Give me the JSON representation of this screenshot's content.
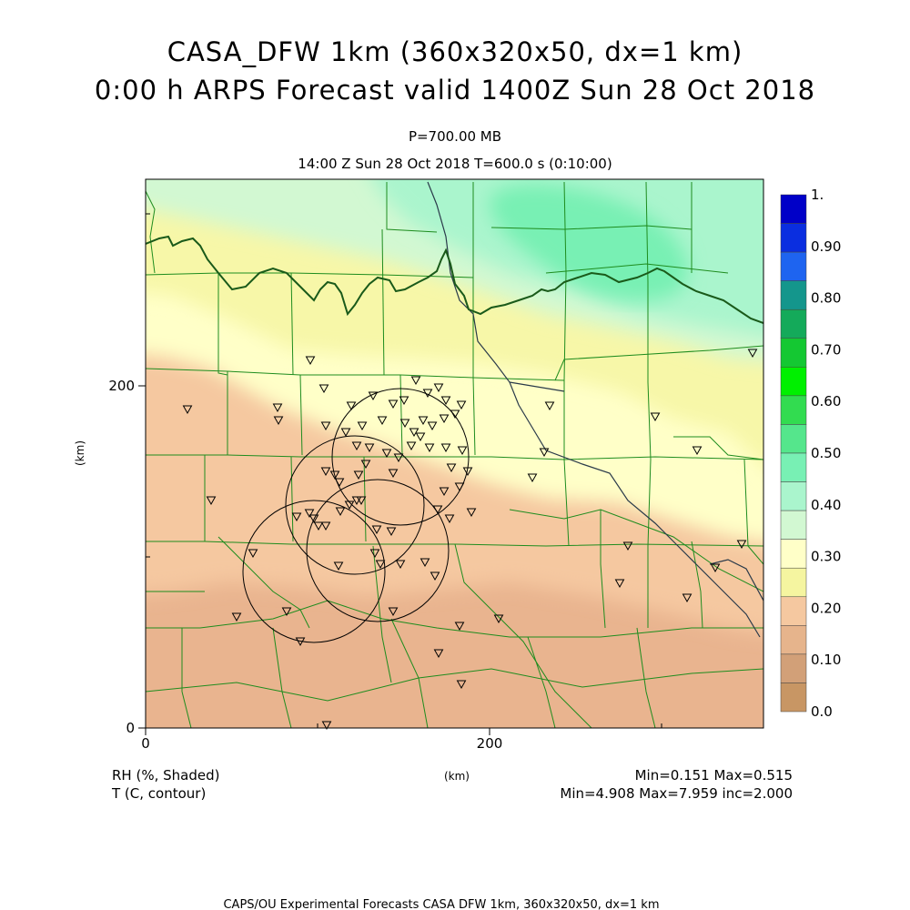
{
  "title": {
    "line1": "CASA_DFW 1km (360x320x50, dx=1 km)",
    "line2": "0:00 h ARPS Forecast valid 1400Z Sun 28 Oct 2018"
  },
  "subtitle": {
    "level": "P=700.00 MB",
    "time": "14:00 Z Sun 28 Oct 2018    T=600.0 s (0:10:00)"
  },
  "axes": {
    "x_unit": "(km)",
    "y_unit": "(km)",
    "x_ticks": [
      "0",
      "200"
    ],
    "y_ticks": [
      "0",
      "200"
    ]
  },
  "colorbar": {
    "labels": [
      "1.",
      "0.90",
      "0.80",
      "0.70",
      "0.60",
      "0.50",
      "0.40",
      "0.30",
      "0.20",
      "0.10",
      "0.0"
    ],
    "colors": [
      "#0000c8",
      "#0a2ee0",
      "#1e64f0",
      "#14968c",
      "#14aa5a",
      "#14c832",
      "#00f000",
      "#32dc50",
      "#55e68c",
      "#78f0b4",
      "#aaf5cd",
      "#d2f8d2",
      "#ffffc8",
      "#f5f5a0",
      "#f5c8a0",
      "#e6b48c",
      "#d2a078",
      "#c89664"
    ]
  },
  "legend": {
    "rh_label": "RH (%, Shaded)",
    "t_label": "T (C, contour)",
    "rh_range": "Min=0.151  Max=0.515",
    "t_range": "Min=4.908  Max=7.959  inc=2.000"
  },
  "footer": "CAPS/OU Experimental Forecasts  CASA DFW 1km, 360x320x50, dx=1 km",
  "map": {
    "shading_colors": {
      "dark_tan": "#e9b48f",
      "tan": "#f5c8a0",
      "pale_yellow": "#ffffc8",
      "yellow": "#f7f7a8",
      "pale_green": "#d2f8d2",
      "mint": "#aaf5cd",
      "green": "#78f0b4"
    },
    "county_line_color": "#1e8c1e",
    "contour_color": "#1a5a1a"
  }
}
